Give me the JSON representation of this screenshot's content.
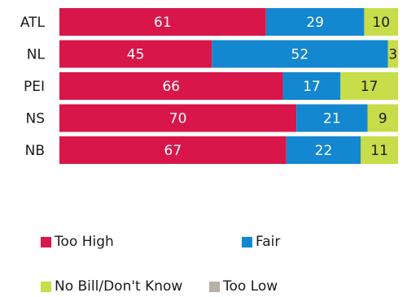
{
  "chart_data": {
    "type": "bar",
    "orientation": "horizontal",
    "stacked": true,
    "categories": [
      "ATL",
      "NL",
      "PEI",
      "NS",
      "NB"
    ],
    "series": [
      {
        "name": "Too High",
        "color": "#d8164a",
        "values": [
          61,
          45,
          66,
          70,
          67
        ]
      },
      {
        "name": "Fair",
        "color": "#1387cf",
        "values": [
          29,
          52,
          17,
          21,
          22
        ]
      },
      {
        "name": "No Bill/Don't Know",
        "color": "#c7dd4a",
        "values": [
          10,
          3,
          17,
          9,
          11
        ]
      },
      {
        "name": "Too Low",
        "color": "#b9b0a7",
        "values": [
          0,
          0,
          0,
          0,
          0
        ]
      }
    ],
    "xlim": [
      0,
      100
    ],
    "grid": false,
    "legend_position": "bottom",
    "data_labels": true
  }
}
